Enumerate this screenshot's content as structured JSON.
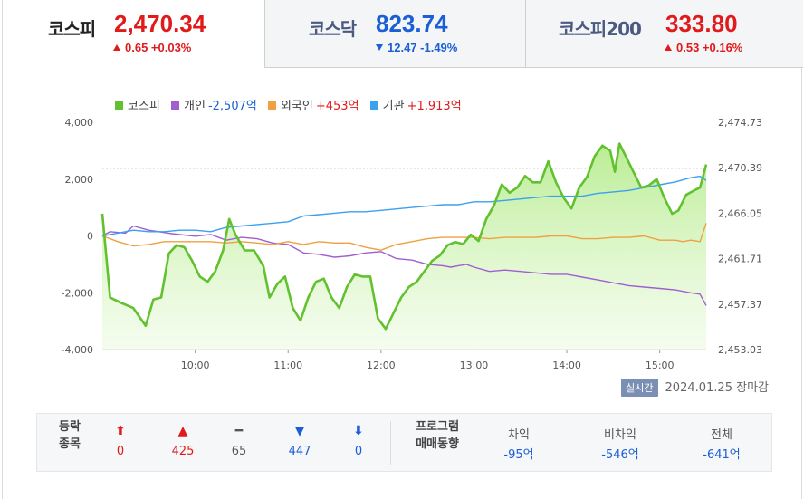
{
  "tabs": [
    {
      "name": "코스피",
      "value": "2,470.34",
      "change": "0.65 +0.03%",
      "dir": "up"
    },
    {
      "name": "코스닥",
      "value": "823.74",
      "change": "12.47 -1.49%",
      "dir": "down"
    },
    {
      "name": "코스피200",
      "value": "333.80",
      "change": "0.53 +0.16%",
      "dir": "up"
    }
  ],
  "legend": [
    {
      "label": "코스피",
      "value": "",
      "color": "#62c12e",
      "value_color": ""
    },
    {
      "label": "개인",
      "value": "-2,507억",
      "color": "#a05fd0",
      "value_color": "#1a5fd6"
    },
    {
      "label": "외국인",
      "value": "+453억",
      "color": "#f0a040",
      "value_color": "#e01b1b"
    },
    {
      "label": "기관",
      "value": "+1,913억",
      "color": "#3aa0f0",
      "value_color": "#e01b1b"
    }
  ],
  "realtime": {
    "badge": "실시간",
    "date": "2024.01.25",
    "status": "장마감"
  },
  "breadth": {
    "header": [
      "등락",
      "종목"
    ],
    "items": [
      {
        "symbol": "⬆",
        "count": "0",
        "color": "#e01b1b"
      },
      {
        "symbol": "▲",
        "count": "425",
        "color": "#e01b1b"
      },
      {
        "symbol": "━",
        "count": "65",
        "color": "#555555"
      },
      {
        "symbol": "▼",
        "count": "447",
        "color": "#1a5fd6"
      },
      {
        "symbol": "⬇",
        "count": "0",
        "color": "#1a5fd6"
      }
    ]
  },
  "program": {
    "header": [
      "프로그램",
      "매매동향"
    ],
    "cols": [
      {
        "title": "차익",
        "value": "-95억"
      },
      {
        "title": "비차익",
        "value": "-546억"
      },
      {
        "title": "전체",
        "value": "-641억"
      }
    ]
  },
  "chart_data": {
    "type": "line",
    "x_ticks": [
      "10:00",
      "11:00",
      "12:00",
      "13:00",
      "14:00",
      "15:00"
    ],
    "x_range": [
      "09:00",
      "15:30"
    ],
    "y_left": {
      "ticks": [
        "4,000",
        "2,000",
        "0",
        "-2,000",
        "-4,000"
      ],
      "range": [
        -4000,
        4000
      ]
    },
    "y_right": {
      "ticks": [
        "2,474.73",
        "2,470.39",
        "2,466.05",
        "2,461.71",
        "2,457.37",
        "2,453.03"
      ],
      "range": [
        2453.03,
        2474.73
      ]
    },
    "reference_line": 2470.34,
    "series": [
      {
        "name": "코스피",
        "axis": "right",
        "color": "#62c12e",
        "fill": true,
        "points": [
          [
            0,
            2466.0
          ],
          [
            5,
            2458.0
          ],
          [
            12,
            2457.5
          ],
          [
            20,
            2457.0
          ],
          [
            28,
            2455.3
          ],
          [
            33,
            2457.8
          ],
          [
            38,
            2458.0
          ],
          [
            43,
            2462.2
          ],
          [
            48,
            2463.0
          ],
          [
            53,
            2462.8
          ],
          [
            58,
            2461.5
          ],
          [
            63,
            2460.0
          ],
          [
            68,
            2459.5
          ],
          [
            73,
            2460.5
          ],
          [
            78,
            2462.5
          ],
          [
            82,
            2465.5
          ],
          [
            86,
            2464.0
          ],
          [
            92,
            2462.5
          ],
          [
            98,
            2462.5
          ],
          [
            104,
            2461.0
          ],
          [
            108,
            2458.0
          ],
          [
            113,
            2459.3
          ],
          [
            118,
            2460.0
          ],
          [
            123,
            2457.0
          ],
          [
            128,
            2455.8
          ],
          [
            133,
            2458.0
          ],
          [
            138,
            2459.5
          ],
          [
            143,
            2459.8
          ],
          [
            148,
            2458.0
          ],
          [
            153,
            2457.0
          ],
          [
            158,
            2459.0
          ],
          [
            163,
            2460.2
          ],
          [
            168,
            2460.0
          ],
          [
            173,
            2460.0
          ],
          [
            178,
            2456.0
          ],
          [
            183,
            2455.0
          ],
          [
            188,
            2456.5
          ],
          [
            193,
            2458.0
          ],
          [
            198,
            2459.0
          ],
          [
            203,
            2459.5
          ],
          [
            208,
            2460.5
          ],
          [
            213,
            2461.5
          ],
          [
            218,
            2462.0
          ],
          [
            223,
            2463.0
          ],
          [
            228,
            2463.3
          ],
          [
            233,
            2463.1
          ],
          [
            238,
            2464.0
          ],
          [
            243,
            2463.4
          ],
          [
            248,
            2465.5
          ],
          [
            253,
            2466.8
          ],
          [
            258,
            2468.8
          ],
          [
            263,
            2468.0
          ],
          [
            268,
            2468.5
          ],
          [
            273,
            2469.6
          ],
          [
            278,
            2469.0
          ],
          [
            283,
            2469.0
          ],
          [
            288,
            2471.0
          ],
          [
            293,
            2469.0
          ],
          [
            298,
            2467.5
          ],
          [
            303,
            2466.5
          ],
          [
            308,
            2468.5
          ],
          [
            313,
            2469.5
          ],
          [
            318,
            2471.5
          ],
          [
            323,
            2472.5
          ],
          [
            328,
            2472.0
          ],
          [
            331,
            2470.0
          ],
          [
            334,
            2472.7
          ],
          [
            338,
            2471.5
          ],
          [
            343,
            2470.0
          ],
          [
            348,
            2468.5
          ],
          [
            353,
            2468.7
          ],
          [
            358,
            2469.3
          ],
          [
            363,
            2467.5
          ],
          [
            368,
            2466.0
          ],
          [
            372,
            2466.3
          ],
          [
            377,
            2467.8
          ],
          [
            382,
            2468.2
          ],
          [
            386,
            2468.5
          ],
          [
            390,
            2470.7
          ]
        ]
      },
      {
        "name": "개인",
        "axis": "left",
        "color": "#a05fd0",
        "fill": false,
        "points": [
          [
            0,
            0
          ],
          [
            5,
            150
          ],
          [
            15,
            100
          ],
          [
            20,
            350
          ],
          [
            30,
            200
          ],
          [
            45,
            80
          ],
          [
            60,
            -10
          ],
          [
            70,
            50
          ],
          [
            80,
            -150
          ],
          [
            90,
            -50
          ],
          [
            100,
            -100
          ],
          [
            110,
            -250
          ],
          [
            120,
            -300
          ],
          [
            130,
            -600
          ],
          [
            140,
            -650
          ],
          [
            150,
            -750
          ],
          [
            160,
            -700
          ],
          [
            170,
            -600
          ],
          [
            180,
            -550
          ],
          [
            190,
            -800
          ],
          [
            200,
            -850
          ],
          [
            210,
            -1000
          ],
          [
            220,
            -1050
          ],
          [
            225,
            -1100
          ],
          [
            235,
            -1000
          ],
          [
            240,
            -1100
          ],
          [
            250,
            -1250
          ],
          [
            260,
            -1200
          ],
          [
            270,
            -1250
          ],
          [
            280,
            -1300
          ],
          [
            290,
            -1350
          ],
          [
            300,
            -1350
          ],
          [
            310,
            -1450
          ],
          [
            320,
            -1550
          ],
          [
            330,
            -1650
          ],
          [
            340,
            -1750
          ],
          [
            350,
            -1800
          ],
          [
            360,
            -1850
          ],
          [
            370,
            -1900
          ],
          [
            380,
            -2000
          ],
          [
            386,
            -2050
          ],
          [
            390,
            -2450
          ]
        ]
      },
      {
        "name": "외국인",
        "axis": "left",
        "color": "#f0a040",
        "fill": false,
        "points": [
          [
            0,
            0
          ],
          [
            10,
            -200
          ],
          [
            20,
            -350
          ],
          [
            30,
            -300
          ],
          [
            40,
            -200
          ],
          [
            50,
            -200
          ],
          [
            60,
            -200
          ],
          [
            70,
            -200
          ],
          [
            80,
            -250
          ],
          [
            90,
            -200
          ],
          [
            100,
            -250
          ],
          [
            110,
            -300
          ],
          [
            120,
            -200
          ],
          [
            130,
            -300
          ],
          [
            140,
            -200
          ],
          [
            150,
            -250
          ],
          [
            160,
            -250
          ],
          [
            170,
            -400
          ],
          [
            180,
            -500
          ],
          [
            190,
            -300
          ],
          [
            200,
            -200
          ],
          [
            210,
            -100
          ],
          [
            220,
            -50
          ],
          [
            230,
            -50
          ],
          [
            240,
            -50
          ],
          [
            250,
            -100
          ],
          [
            260,
            -50
          ],
          [
            270,
            -50
          ],
          [
            280,
            -50
          ],
          [
            290,
            0
          ],
          [
            300,
            0
          ],
          [
            310,
            -100
          ],
          [
            320,
            -100
          ],
          [
            330,
            -50
          ],
          [
            340,
            -50
          ],
          [
            350,
            0
          ],
          [
            360,
            -150
          ],
          [
            370,
            -150
          ],
          [
            375,
            -200
          ],
          [
            380,
            -150
          ],
          [
            386,
            -200
          ],
          [
            390,
            450
          ]
        ]
      },
      {
        "name": "기관",
        "axis": "left",
        "color": "#3aa0f0",
        "fill": false,
        "points": [
          [
            0,
            0
          ],
          [
            10,
            100
          ],
          [
            20,
            200
          ],
          [
            30,
            150
          ],
          [
            40,
            150
          ],
          [
            50,
            200
          ],
          [
            60,
            200
          ],
          [
            70,
            150
          ],
          [
            80,
            300
          ],
          [
            90,
            350
          ],
          [
            100,
            400
          ],
          [
            110,
            450
          ],
          [
            120,
            500
          ],
          [
            130,
            700
          ],
          [
            140,
            750
          ],
          [
            150,
            800
          ],
          [
            160,
            850
          ],
          [
            170,
            850
          ],
          [
            180,
            900
          ],
          [
            190,
            950
          ],
          [
            200,
            1000
          ],
          [
            210,
            1050
          ],
          [
            220,
            1100
          ],
          [
            230,
            1100
          ],
          [
            240,
            1200
          ],
          [
            250,
            1200
          ],
          [
            260,
            1250
          ],
          [
            270,
            1300
          ],
          [
            280,
            1350
          ],
          [
            290,
            1400
          ],
          [
            300,
            1400
          ],
          [
            310,
            1400
          ],
          [
            320,
            1500
          ],
          [
            330,
            1550
          ],
          [
            340,
            1600
          ],
          [
            350,
            1700
          ],
          [
            360,
            1800
          ],
          [
            370,
            1900
          ],
          [
            380,
            2050
          ],
          [
            386,
            2100
          ],
          [
            390,
            1950
          ]
        ]
      }
    ]
  }
}
